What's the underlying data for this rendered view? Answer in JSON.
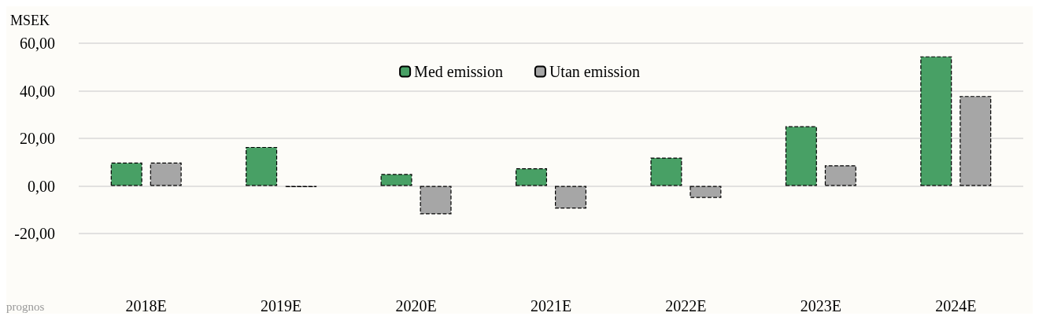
{
  "chart_data": {
    "type": "bar",
    "ylabel": "MSEK",
    "categories": [
      "2018E",
      "2019E",
      "2020E",
      "2021E",
      "2022E",
      "2023E",
      "2024E"
    ],
    "series": [
      {
        "name": "Med emission",
        "color": "#48a065",
        "values": [
          9.8,
          16.4,
          5.0,
          7.4,
          11.9,
          25.1,
          54.5
        ]
      },
      {
        "name": "Utan emission",
        "color": "#a6a6a6",
        "values": [
          9.8,
          -0.5,
          -11.9,
          -9.5,
          -5.0,
          8.7,
          37.8
        ]
      }
    ],
    "ylim": [
      -20,
      60
    ],
    "yticks": [
      {
        "value": -20,
        "label": "-20,00"
      },
      {
        "value": 0,
        "label": "0,00"
      },
      {
        "value": 20,
        "label": "20,00"
      },
      {
        "value": 40,
        "label": "40,00"
      },
      {
        "value": 60,
        "label": "60,00"
      }
    ],
    "grid": "y",
    "legend": "top",
    "line_style": "dashed",
    "annotations": [
      "prognos"
    ]
  }
}
